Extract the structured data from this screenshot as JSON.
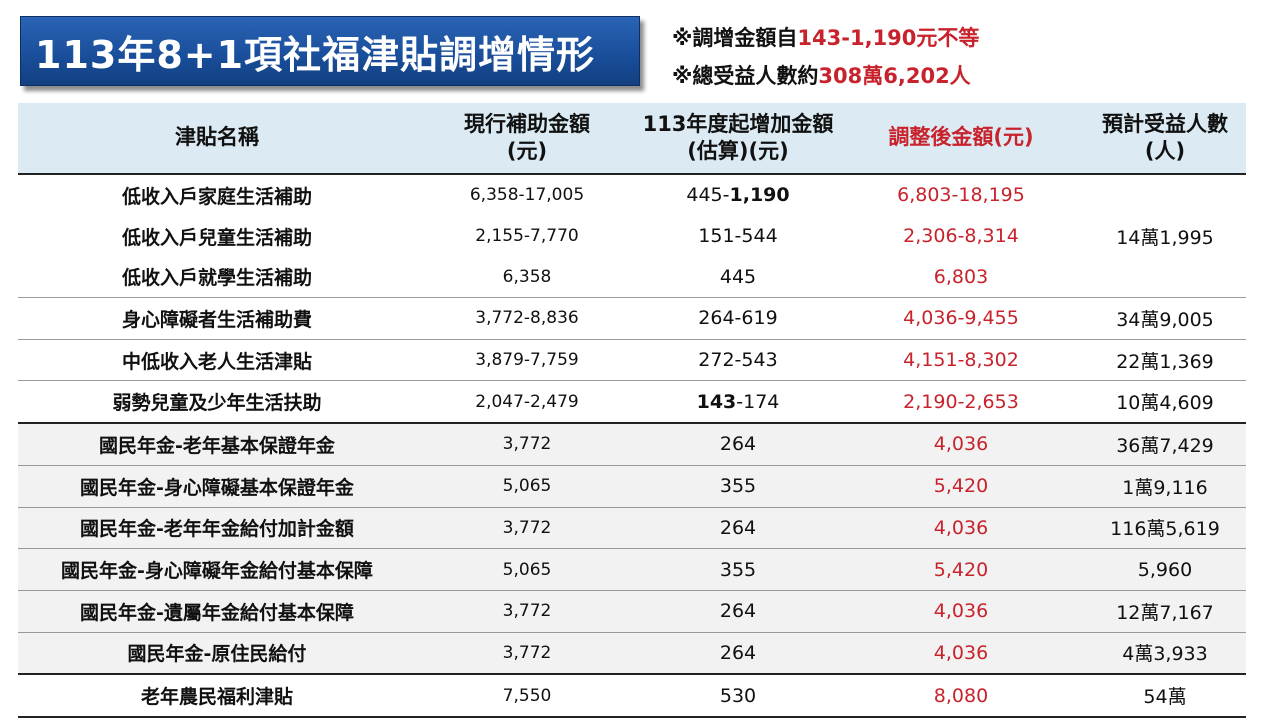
{
  "title": "113年8+1項社福津貼調增情形",
  "notes": {
    "line1_prefix": "※調增金額自",
    "line1_highlight": "143-1,190元不等",
    "line2_prefix": "※總受益人數約",
    "line2_highlight": "308萬6,202人"
  },
  "colors": {
    "title_bg": "#1a4f9c",
    "header_bg": "#dcebf3",
    "highlight": "#c8232c",
    "grey_row": "#f2f2f2"
  },
  "table": {
    "headers": {
      "name": "津貼名稱",
      "current_1": "現行補助金額",
      "current_2": "(元)",
      "increase_1": "113年度起增加金額",
      "increase_2": "(估算)(元)",
      "adjusted": "調整後金額(元)",
      "beneficiaries_1": "預計受益人數",
      "beneficiaries_2": "(人)"
    },
    "rows": [
      {
        "name": "低收入戶家庭生活補助",
        "current": "6,358-17,005",
        "increase_a": "445-",
        "increase_b": "1,190",
        "adjusted": "6,803-18,195",
        "beneficiaries": "14萬1,995"
      },
      {
        "name": "低收入戶兒童生活補助",
        "current": "2,155-7,770",
        "increase": "151-544",
        "adjusted": "2,306-8,314"
      },
      {
        "name": "低收入戶就學生活補助",
        "current": "6,358",
        "increase": "445",
        "adjusted": "6,803"
      },
      {
        "name": "身心障礙者生活補助費",
        "current": "3,772-8,836",
        "increase": "264-619",
        "adjusted": "4,036-9,455",
        "beneficiaries": "34萬9,005"
      },
      {
        "name": "中低收入老人生活津貼",
        "current": "3,879-7,759",
        "increase": "272-543",
        "adjusted": "4,151-8,302",
        "beneficiaries": "22萬1,369"
      },
      {
        "name": "弱勢兒童及少年生活扶助",
        "current": "2,047-2,479",
        "increase_a": "143",
        "increase_b": "-174",
        "adjusted": "2,190-2,653",
        "beneficiaries": "10萬4,609"
      },
      {
        "name": "國民年金-老年基本保證年金",
        "current": "3,772",
        "increase": "264",
        "adjusted": "4,036",
        "beneficiaries": "36萬7,429"
      },
      {
        "name": "國民年金-身心障礙基本保證年金",
        "current": "5,065",
        "increase": "355",
        "adjusted": "5,420",
        "beneficiaries": "1萬9,116"
      },
      {
        "name": "國民年金-老年年金給付加計金額",
        "current": "3,772",
        "increase": "264",
        "adjusted": "4,036",
        "beneficiaries": "116萬5,619"
      },
      {
        "name": "國民年金-身心障礙年金給付基本保障",
        "current": "5,065",
        "increase": "355",
        "adjusted": "5,420",
        "beneficiaries": "5,960"
      },
      {
        "name": "國民年金-遺屬年金給付基本保障",
        "current": "3,772",
        "increase": "264",
        "adjusted": "4,036",
        "beneficiaries": "12萬7,167"
      },
      {
        "name": "國民年金-原住民給付",
        "current": "3,772",
        "increase": "264",
        "adjusted": "4,036",
        "beneficiaries": "4萬3,933"
      },
      {
        "name": "老年農民福利津貼",
        "current": "7,550",
        "increase": "530",
        "adjusted": "8,080",
        "beneficiaries": "54萬"
      }
    ]
  }
}
